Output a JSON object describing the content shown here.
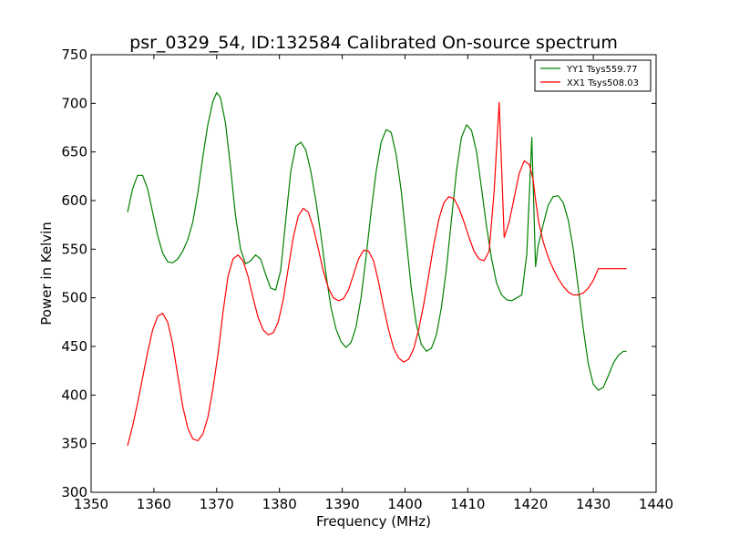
{
  "chart_data": {
    "type": "line",
    "title": "psr_0329_54, ID:132584 Calibrated On-source spectrum",
    "xlabel": "Frequency (MHz)",
    "ylabel": "Power in Kelvin",
    "xlim": [
      1350,
      1440
    ],
    "ylim": [
      300,
      750
    ],
    "xticks": [
      1350,
      1360,
      1370,
      1380,
      1390,
      1400,
      1410,
      1420,
      1430,
      1440
    ],
    "yticks": [
      300,
      350,
      400,
      450,
      500,
      550,
      600,
      650,
      700,
      750
    ],
    "grid": false,
    "legend_position": "top-right",
    "series": [
      {
        "name": "YY1 Tsys559.77",
        "color": "#008000",
        "x": [
          1355.8,
          1356.6,
          1357.4,
          1358.2,
          1359.0,
          1359.8,
          1360.6,
          1361.4,
          1362.2,
          1363.0,
          1363.8,
          1364.6,
          1365.4,
          1366.2,
          1367.0,
          1367.8,
          1368.6,
          1369.4,
          1370.0,
          1370.6,
          1371.4,
          1372.2,
          1373.0,
          1373.8,
          1374.6,
          1375.4,
          1376.2,
          1377.0,
          1377.8,
          1378.6,
          1379.4,
          1380.2,
          1381.0,
          1381.8,
          1382.6,
          1383.4,
          1384.2,
          1385.0,
          1385.8,
          1386.6,
          1387.4,
          1388.2,
          1389.0,
          1389.8,
          1390.6,
          1391.4,
          1392.2,
          1393.0,
          1393.8,
          1394.6,
          1395.4,
          1396.2,
          1397.0,
          1397.8,
          1398.6,
          1399.4,
          1400.2,
          1401.0,
          1401.8,
          1402.6,
          1403.4,
          1404.2,
          1405.0,
          1405.8,
          1406.6,
          1407.4,
          1408.2,
          1409.0,
          1409.8,
          1410.6,
          1411.4,
          1412.2,
          1413.0,
          1413.8,
          1414.6,
          1415.4,
          1416.2,
          1417.0,
          1417.8,
          1418.6,
          1419.4,
          1420.2,
          1420.8,
          1421.2,
          1422.0,
          1422.8,
          1423.6,
          1424.4,
          1425.2,
          1426.0,
          1426.8,
          1427.6,
          1428.4,
          1429.2,
          1430.0,
          1430.8,
          1431.6,
          1432.4,
          1433.2,
          1434.0,
          1434.8,
          1435.3
        ],
        "y": [
          588,
          612,
          626,
          626,
          612,
          588,
          564,
          546,
          537,
          536,
          540,
          548,
          560,
          578,
          608,
          645,
          678,
          702,
          711,
          706,
          680,
          635,
          585,
          550,
          535,
          538,
          544,
          540,
          524,
          510,
          508,
          528,
          580,
          630,
          656,
          660,
          652,
          630,
          600,
          565,
          525,
          490,
          468,
          455,
          449,
          454,
          470,
          500,
          542,
          588,
          630,
          660,
          673,
          670,
          647,
          610,
          560,
          510,
          473,
          452,
          445,
          448,
          462,
          490,
          530,
          580,
          630,
          665,
          678,
          672,
          650,
          612,
          573,
          540,
          515,
          503,
          498,
          497,
          500,
          503,
          545,
          665,
          532,
          553,
          575,
          595,
          604,
          605,
          598,
          580,
          550,
          510,
          468,
          432,
          411,
          405,
          408,
          420,
          433,
          441,
          445,
          445
        ]
      },
      {
        "name": "XX1 Tsys508.03",
        "color": "#ff0000",
        "x": [
          1355.8,
          1356.6,
          1357.4,
          1358.2,
          1359.0,
          1359.8,
          1360.6,
          1361.4,
          1362.2,
          1363.0,
          1363.8,
          1364.6,
          1365.4,
          1366.2,
          1367.0,
          1367.8,
          1368.6,
          1369.4,
          1370.2,
          1371.0,
          1371.8,
          1372.6,
          1373.4,
          1374.2,
          1375.0,
          1375.8,
          1376.6,
          1377.4,
          1378.2,
          1379.0,
          1379.8,
          1380.6,
          1381.4,
          1382.2,
          1383.0,
          1383.8,
          1384.6,
          1385.4,
          1386.2,
          1387.0,
          1387.8,
          1388.6,
          1389.4,
          1390.2,
          1391.0,
          1391.8,
          1392.6,
          1393.4,
          1394.2,
          1395.0,
          1395.8,
          1396.6,
          1397.4,
          1398.2,
          1399.0,
          1399.8,
          1400.6,
          1401.4,
          1402.2,
          1403.0,
          1403.8,
          1404.6,
          1405.4,
          1406.2,
          1407.0,
          1407.8,
          1408.6,
          1409.4,
          1410.2,
          1411.0,
          1411.8,
          1412.6,
          1413.4,
          1414.2,
          1415.0,
          1415.8,
          1416.6,
          1417.4,
          1418.2,
          1419.0,
          1419.8,
          1420.4,
          1420.8,
          1421.3,
          1422.0,
          1422.8,
          1423.6,
          1424.4,
          1425.2,
          1426.0,
          1426.8,
          1427.6,
          1428.4,
          1429.2,
          1430.0,
          1430.8,
          1431.6,
          1432.4,
          1433.2,
          1434.0,
          1434.8,
          1435.3
        ],
        "y": [
          348,
          368,
          392,
          418,
          444,
          467,
          481,
          484,
          475,
          452,
          420,
          388,
          366,
          355,
          353,
          360,
          377,
          406,
          442,
          485,
          522,
          540,
          544,
          538,
          522,
          500,
          480,
          467,
          462,
          464,
          475,
          498,
          530,
          562,
          584,
          592,
          588,
          572,
          550,
          527,
          510,
          500,
          497,
          499,
          508,
          524,
          540,
          549,
          548,
          538,
          516,
          490,
          467,
          448,
          438,
          434,
          437,
          448,
          468,
          494,
          524,
          555,
          581,
          598,
          604,
          602,
          592,
          578,
          562,
          548,
          540,
          538,
          548,
          610,
          701,
          562,
          578,
          603,
          628,
          641,
          637,
          622,
          601,
          578,
          558,
          542,
          530,
          520,
          512,
          506,
          503,
          503,
          505,
          510,
          518,
          530,
          530,
          530,
          530,
          530,
          530,
          530
        ]
      }
    ]
  }
}
